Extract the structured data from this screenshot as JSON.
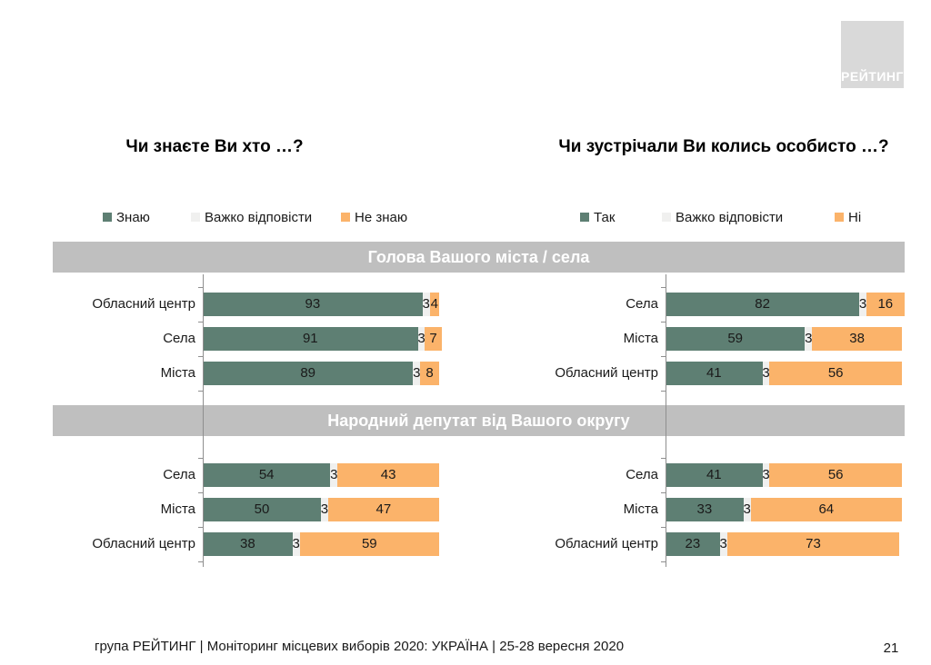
{
  "slide": {
    "logo_text": "РЕЙТИНГ",
    "footer": "група РЕЙТИНГ | Моніторинг місцевих виборів 2020: УКРАЇНА | 25-28 вересня 2020",
    "page_number": "21"
  },
  "colors": {
    "series": [
      "#5e7f73",
      "#f0f0ef",
      "#fbb36a"
    ],
    "band_background": "#bfbfbf",
    "logo_background": "#d9d9d9",
    "axis": "#8f8f8f",
    "band_title_text": "#ffffff"
  },
  "section_headers": [
    "Голова Вашого міста / села",
    "Народний депутат від Вашого округу"
  ],
  "chart_data": [
    {
      "type": "bar",
      "orientation": "horizontal",
      "stacked": true,
      "title": "Чи знаєте Ви хто …?",
      "legend": [
        "Знаю",
        "Важко відповісти",
        "Не знаю"
      ],
      "legend_position": "top",
      "xlim": [
        0,
        100
      ],
      "value_labels": true,
      "grid": false,
      "groups": [
        {
          "header": "Голова Вашого міста / села",
          "categories": [
            "Обласний центр",
            "Села",
            "Міста"
          ],
          "series": [
            {
              "name": "Знаю",
              "values": [
                93,
                91,
                89
              ]
            },
            {
              "name": "Важко відповісти",
              "values": [
                3,
                3,
                3
              ]
            },
            {
              "name": "Не знаю",
              "values": [
                4,
                7,
                8
              ]
            }
          ]
        },
        {
          "header": "Народний депутат від Вашого округу",
          "categories": [
            "Села",
            "Міста",
            "Обласний центр"
          ],
          "series": [
            {
              "name": "Знаю",
              "values": [
                54,
                50,
                38
              ]
            },
            {
              "name": "Важко відповісти",
              "values": [
                3,
                3,
                3
              ]
            },
            {
              "name": "Не знаю",
              "values": [
                43,
                47,
                59
              ]
            }
          ]
        }
      ]
    },
    {
      "type": "bar",
      "orientation": "horizontal",
      "stacked": true,
      "title": "Чи зустрічали Ви колись особисто …?",
      "legend": [
        "Так",
        "Важко відповісти",
        "Ні"
      ],
      "legend_position": "top",
      "xlim": [
        0,
        100
      ],
      "value_labels": true,
      "grid": false,
      "groups": [
        {
          "header": "Голова Вашого міста / села",
          "categories": [
            "Села",
            "Міста",
            "Обласний центр"
          ],
          "series": [
            {
              "name": "Так",
              "values": [
                82,
                59,
                41
              ]
            },
            {
              "name": "Важко відповісти",
              "values": [
                3,
                3,
                3
              ]
            },
            {
              "name": "Ні",
              "values": [
                16,
                38,
                56
              ]
            }
          ]
        },
        {
          "header": "Народний депутат від Вашого округу",
          "categories": [
            "Села",
            "Міста",
            "Обласний центр"
          ],
          "series": [
            {
              "name": "Так",
              "values": [
                41,
                33,
                23
              ]
            },
            {
              "name": "Важко відповісти",
              "values": [
                3,
                3,
                3
              ]
            },
            {
              "name": "Ні",
              "values": [
                56,
                64,
                73
              ]
            }
          ]
        }
      ]
    }
  ]
}
